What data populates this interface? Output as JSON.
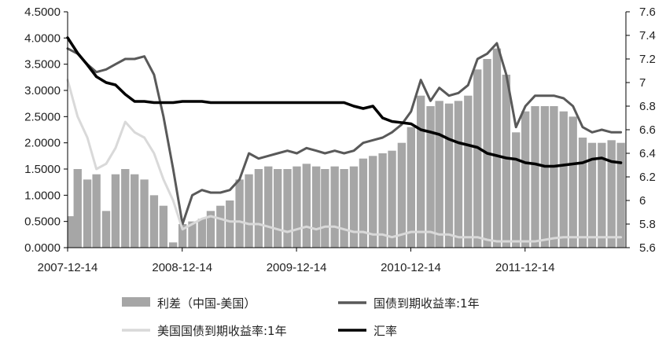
{
  "chart_data": {
    "type": "line",
    "title": "",
    "xlabel": "",
    "ylabel_left": "",
    "ylabel_right": "",
    "x_range": [
      "2007-12-14",
      "2012-10-31"
    ],
    "x_ticks": [
      "2007-12-14",
      "2008-12-14",
      "2009-12-14",
      "2010-12-14",
      "2011-12-14"
    ],
    "y_left": {
      "range": [
        0,
        4.5
      ],
      "ticks": [
        "0.0000",
        "0.5000",
        "1.0000",
        "1.5000",
        "2.0000",
        "2.5000",
        "3.0000",
        "3.5000",
        "4.0000",
        "4.5000"
      ]
    },
    "y_right": {
      "range": [
        5.6,
        7.6
      ],
      "ticks": [
        "5.6",
        "5.8",
        "6",
        "6.2",
        "6.4",
        "6.6",
        "6.8",
        "7",
        "7.2",
        "7.4",
        "7.6"
      ]
    },
    "grid": false,
    "legend_position": "bottom",
    "series": [
      {
        "name": "利差（中国-美国）",
        "kind": "bar",
        "axis": "left",
        "color": "#a6a6a6",
        "points": [
          [
            "2007-12-14",
            0.6
          ],
          [
            "2008-01-15",
            1.5
          ],
          [
            "2008-02-15",
            1.3
          ],
          [
            "2008-03-15",
            1.4
          ],
          [
            "2008-04-15",
            0.7
          ],
          [
            "2008-05-15",
            1.4
          ],
          [
            "2008-06-15",
            1.5
          ],
          [
            "2008-07-15",
            1.4
          ],
          [
            "2008-08-15",
            1.3
          ],
          [
            "2008-09-15",
            1.0
          ],
          [
            "2008-10-15",
            0.8
          ],
          [
            "2008-11-15",
            0.1
          ],
          [
            "2008-12-15",
            0.45
          ],
          [
            "2009-01-15",
            0.5
          ],
          [
            "2009-02-15",
            0.55
          ],
          [
            "2009-03-15",
            0.7
          ],
          [
            "2009-04-15",
            0.8
          ],
          [
            "2009-05-15",
            0.9
          ],
          [
            "2009-06-15",
            1.3
          ],
          [
            "2009-07-15",
            1.4
          ],
          [
            "2009-08-15",
            1.5
          ],
          [
            "2009-09-15",
            1.55
          ],
          [
            "2009-10-15",
            1.5
          ],
          [
            "2009-11-15",
            1.5
          ],
          [
            "2009-12-15",
            1.55
          ],
          [
            "2010-01-15",
            1.6
          ],
          [
            "2010-02-15",
            1.55
          ],
          [
            "2010-03-15",
            1.5
          ],
          [
            "2010-04-15",
            1.55
          ],
          [
            "2010-05-15",
            1.5
          ],
          [
            "2010-06-15",
            1.55
          ],
          [
            "2010-07-15",
            1.7
          ],
          [
            "2010-08-15",
            1.75
          ],
          [
            "2010-09-15",
            1.8
          ],
          [
            "2010-10-15",
            1.85
          ],
          [
            "2010-11-15",
            2.0
          ],
          [
            "2010-12-15",
            2.3
          ],
          [
            "2011-01-15",
            2.9
          ],
          [
            "2011-02-15",
            2.7
          ],
          [
            "2011-03-15",
            2.8
          ],
          [
            "2011-04-15",
            2.75
          ],
          [
            "2011-05-15",
            2.8
          ],
          [
            "2011-06-15",
            2.9
          ],
          [
            "2011-07-15",
            3.4
          ],
          [
            "2011-08-15",
            3.6
          ],
          [
            "2011-09-15",
            3.8
          ],
          [
            "2011-10-15",
            3.3
          ],
          [
            "2011-11-15",
            2.2
          ],
          [
            "2011-12-15",
            2.6
          ],
          [
            "2012-01-15",
            2.7
          ],
          [
            "2012-02-15",
            2.7
          ],
          [
            "2012-03-15",
            2.7
          ],
          [
            "2012-04-15",
            2.6
          ],
          [
            "2012-05-15",
            2.5
          ],
          [
            "2012-06-15",
            2.1
          ],
          [
            "2012-07-15",
            2.0
          ],
          [
            "2012-08-15",
            2.0
          ],
          [
            "2012-09-15",
            2.05
          ],
          [
            "2012-10-15",
            2.0
          ]
        ]
      },
      {
        "name": "国债到期收益率:1年",
        "kind": "line",
        "axis": "left",
        "color": "#595959",
        "points": [
          [
            "2007-12-14",
            3.8
          ],
          [
            "2008-01-15",
            3.7
          ],
          [
            "2008-02-15",
            3.5
          ],
          [
            "2008-03-15",
            3.35
          ],
          [
            "2008-04-15",
            3.4
          ],
          [
            "2008-05-15",
            3.5
          ],
          [
            "2008-06-15",
            3.6
          ],
          [
            "2008-07-15",
            3.6
          ],
          [
            "2008-08-15",
            3.65
          ],
          [
            "2008-09-15",
            3.3
          ],
          [
            "2008-10-15",
            2.5
          ],
          [
            "2008-11-15",
            1.5
          ],
          [
            "2008-12-15",
            0.45
          ],
          [
            "2009-01-15",
            1.0
          ],
          [
            "2009-02-15",
            1.1
          ],
          [
            "2009-03-15",
            1.05
          ],
          [
            "2009-04-15",
            1.05
          ],
          [
            "2009-05-15",
            1.1
          ],
          [
            "2009-06-15",
            1.3
          ],
          [
            "2009-07-15",
            1.8
          ],
          [
            "2009-08-15",
            1.7
          ],
          [
            "2009-09-15",
            1.75
          ],
          [
            "2009-10-15",
            1.8
          ],
          [
            "2009-11-15",
            1.85
          ],
          [
            "2009-12-15",
            1.8
          ],
          [
            "2010-01-15",
            1.9
          ],
          [
            "2010-02-15",
            1.85
          ],
          [
            "2010-03-15",
            1.8
          ],
          [
            "2010-04-15",
            1.85
          ],
          [
            "2010-05-15",
            1.8
          ],
          [
            "2010-06-15",
            1.85
          ],
          [
            "2010-07-15",
            2.0
          ],
          [
            "2010-08-15",
            2.05
          ],
          [
            "2010-09-15",
            2.1
          ],
          [
            "2010-10-15",
            2.2
          ],
          [
            "2010-11-15",
            2.35
          ],
          [
            "2010-12-15",
            2.6
          ],
          [
            "2011-01-15",
            3.2
          ],
          [
            "2011-02-15",
            2.8
          ],
          [
            "2011-03-15",
            3.05
          ],
          [
            "2011-04-15",
            2.9
          ],
          [
            "2011-05-15",
            2.95
          ],
          [
            "2011-06-15",
            3.1
          ],
          [
            "2011-07-15",
            3.6
          ],
          [
            "2011-08-15",
            3.7
          ],
          [
            "2011-09-15",
            3.9
          ],
          [
            "2011-10-15",
            3.3
          ],
          [
            "2011-11-15",
            2.3
          ],
          [
            "2011-12-15",
            2.7
          ],
          [
            "2012-01-15",
            2.9
          ],
          [
            "2012-02-15",
            2.9
          ],
          [
            "2012-03-15",
            2.9
          ],
          [
            "2012-04-15",
            2.85
          ],
          [
            "2012-05-15",
            2.7
          ],
          [
            "2012-06-15",
            2.3
          ],
          [
            "2012-07-15",
            2.2
          ],
          [
            "2012-08-15",
            2.25
          ],
          [
            "2012-09-15",
            2.2
          ],
          [
            "2012-10-15",
            2.2
          ]
        ]
      },
      {
        "name": "美国国债到期收益率:1年",
        "kind": "line",
        "axis": "left",
        "color": "#d9d9d9",
        "points": [
          [
            "2007-12-14",
            3.2
          ],
          [
            "2008-01-15",
            2.5
          ],
          [
            "2008-02-15",
            2.1
          ],
          [
            "2008-03-15",
            1.5
          ],
          [
            "2008-04-15",
            1.6
          ],
          [
            "2008-05-15",
            1.9
          ],
          [
            "2008-06-15",
            2.4
          ],
          [
            "2008-07-15",
            2.2
          ],
          [
            "2008-08-15",
            2.1
          ],
          [
            "2008-09-15",
            1.8
          ],
          [
            "2008-10-15",
            1.3
          ],
          [
            "2008-11-15",
            0.9
          ],
          [
            "2008-12-15",
            0.35
          ],
          [
            "2009-01-15",
            0.45
          ],
          [
            "2009-02-15",
            0.55
          ],
          [
            "2009-03-15",
            0.6
          ],
          [
            "2009-04-15",
            0.55
          ],
          [
            "2009-05-15",
            0.5
          ],
          [
            "2009-06-15",
            0.5
          ],
          [
            "2009-07-15",
            0.45
          ],
          [
            "2009-08-15",
            0.45
          ],
          [
            "2009-09-15",
            0.4
          ],
          [
            "2009-10-15",
            0.35
          ],
          [
            "2009-11-15",
            0.3
          ],
          [
            "2009-12-15",
            0.35
          ],
          [
            "2010-01-15",
            0.4
          ],
          [
            "2010-02-15",
            0.35
          ],
          [
            "2010-03-15",
            0.4
          ],
          [
            "2010-04-15",
            0.4
          ],
          [
            "2010-05-15",
            0.35
          ],
          [
            "2010-06-15",
            0.3
          ],
          [
            "2010-07-15",
            0.3
          ],
          [
            "2010-08-15",
            0.25
          ],
          [
            "2010-09-15",
            0.25
          ],
          [
            "2010-10-15",
            0.2
          ],
          [
            "2010-11-15",
            0.25
          ],
          [
            "2010-12-15",
            0.3
          ],
          [
            "2011-01-15",
            0.3
          ],
          [
            "2011-02-15",
            0.3
          ],
          [
            "2011-03-15",
            0.25
          ],
          [
            "2011-04-15",
            0.25
          ],
          [
            "2011-05-15",
            0.2
          ],
          [
            "2011-06-15",
            0.2
          ],
          [
            "2011-07-15",
            0.2
          ],
          [
            "2011-08-15",
            0.15
          ],
          [
            "2011-09-15",
            0.12
          ],
          [
            "2011-10-15",
            0.12
          ],
          [
            "2011-11-15",
            0.12
          ],
          [
            "2011-12-15",
            0.12
          ],
          [
            "2012-01-15",
            0.12
          ],
          [
            "2012-02-15",
            0.15
          ],
          [
            "2012-03-15",
            0.18
          ],
          [
            "2012-04-15",
            0.2
          ],
          [
            "2012-05-15",
            0.2
          ],
          [
            "2012-06-15",
            0.2
          ],
          [
            "2012-07-15",
            0.2
          ],
          [
            "2012-08-15",
            0.2
          ],
          [
            "2012-09-15",
            0.2
          ],
          [
            "2012-10-15",
            0.2
          ]
        ]
      },
      {
        "name": "汇率",
        "kind": "line",
        "axis": "right",
        "color": "#000000",
        "points": [
          [
            "2007-12-14",
            7.38
          ],
          [
            "2008-01-15",
            7.25
          ],
          [
            "2008-02-15",
            7.15
          ],
          [
            "2008-03-15",
            7.05
          ],
          [
            "2008-04-15",
            7.0
          ],
          [
            "2008-05-15",
            6.98
          ],
          [
            "2008-06-15",
            6.9
          ],
          [
            "2008-07-15",
            6.84
          ],
          [
            "2008-08-15",
            6.84
          ],
          [
            "2008-09-15",
            6.83
          ],
          [
            "2008-10-15",
            6.83
          ],
          [
            "2008-11-15",
            6.83
          ],
          [
            "2008-12-15",
            6.84
          ],
          [
            "2009-01-15",
            6.84
          ],
          [
            "2009-02-15",
            6.84
          ],
          [
            "2009-03-15",
            6.83
          ],
          [
            "2009-04-15",
            6.83
          ],
          [
            "2009-05-15",
            6.83
          ],
          [
            "2009-06-15",
            6.83
          ],
          [
            "2009-07-15",
            6.83
          ],
          [
            "2009-08-15",
            6.83
          ],
          [
            "2009-09-15",
            6.83
          ],
          [
            "2009-10-15",
            6.83
          ],
          [
            "2009-11-15",
            6.83
          ],
          [
            "2009-12-15",
            6.83
          ],
          [
            "2010-01-15",
            6.83
          ],
          [
            "2010-02-15",
            6.83
          ],
          [
            "2010-03-15",
            6.83
          ],
          [
            "2010-04-15",
            6.83
          ],
          [
            "2010-05-15",
            6.83
          ],
          [
            "2010-06-15",
            6.8
          ],
          [
            "2010-07-15",
            6.78
          ],
          [
            "2010-08-15",
            6.8
          ],
          [
            "2010-09-15",
            6.7
          ],
          [
            "2010-10-15",
            6.67
          ],
          [
            "2010-11-15",
            6.66
          ],
          [
            "2010-12-15",
            6.65
          ],
          [
            "2011-01-15",
            6.6
          ],
          [
            "2011-02-15",
            6.58
          ],
          [
            "2011-03-15",
            6.56
          ],
          [
            "2011-04-15",
            6.52
          ],
          [
            "2011-05-15",
            6.49
          ],
          [
            "2011-06-15",
            6.47
          ],
          [
            "2011-07-15",
            6.45
          ],
          [
            "2011-08-15",
            6.4
          ],
          [
            "2011-09-15",
            6.38
          ],
          [
            "2011-10-15",
            6.36
          ],
          [
            "2011-11-15",
            6.35
          ],
          [
            "2011-12-15",
            6.32
          ],
          [
            "2012-01-15",
            6.31
          ],
          [
            "2012-02-15",
            6.29
          ],
          [
            "2012-03-15",
            6.29
          ],
          [
            "2012-04-15",
            6.3
          ],
          [
            "2012-05-15",
            6.31
          ],
          [
            "2012-06-15",
            6.32
          ],
          [
            "2012-07-15",
            6.35
          ],
          [
            "2012-08-15",
            6.36
          ],
          [
            "2012-09-15",
            6.33
          ],
          [
            "2012-10-15",
            6.32
          ]
        ]
      }
    ]
  }
}
